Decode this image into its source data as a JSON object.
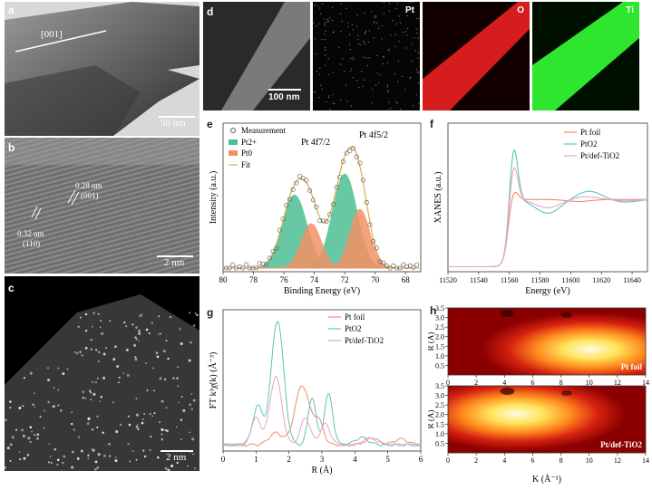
{
  "panels": {
    "a": {
      "label": "a",
      "direction": "[001]",
      "scale": "50 nm"
    },
    "b": {
      "label": "b",
      "spacing1": "0.28 nm",
      "plane1": "(001)",
      "spacing2": "0.32 nm",
      "plane2": "(110)",
      "scale": "2 nm"
    },
    "c": {
      "label": "c",
      "scale": "2 nm"
    },
    "d": {
      "label": "d",
      "scale": "100 nm",
      "maps": [
        "Pt",
        "O",
        "Ti"
      ]
    },
    "e": {
      "label": "e"
    },
    "f": {
      "label": "f"
    },
    "g": {
      "label": "g"
    },
    "h": {
      "label": "h"
    }
  },
  "chart_data": [
    {
      "id": "e",
      "type": "line",
      "xlabel": "Binding Energy (eV)",
      "ylabel": "Intensity (a.u.)",
      "xlim": [
        80,
        67
      ],
      "xticks": [
        80,
        78,
        76,
        74,
        72,
        70,
        68
      ],
      "legend": [
        "Measurement",
        "Pt2+",
        "Pt0",
        "Fit"
      ],
      "annotations": [
        "Pt 4f7/2",
        "Pt 4f5/2"
      ],
      "peaks": [
        {
          "name": "Pt2+",
          "center": 75.3,
          "height": 0.56,
          "width": 0.8
        },
        {
          "name": "Pt2+",
          "center": 72.0,
          "height": 0.72,
          "width": 0.8
        },
        {
          "name": "Pt0",
          "center": 74.2,
          "height": 0.34,
          "width": 0.65
        },
        {
          "name": "Pt0",
          "center": 71.0,
          "height": 0.45,
          "width": 0.65
        }
      ],
      "colors": {
        "Pt2+": "#4dbf94",
        "Pt0": "#f49164",
        "Fit": "#d9b04c",
        "Measurement": "#555555"
      }
    },
    {
      "id": "f",
      "type": "line",
      "xlabel": "Energy (eV)",
      "ylabel": "XANES (a.u.)",
      "xlim": [
        11520,
        11650
      ],
      "xticks": [
        11520,
        11540,
        11560,
        11580,
        11600,
        11620,
        11640
      ],
      "legend": [
        "Pt foil",
        "PtO2",
        "Pt/def-TiO2"
      ],
      "series": [
        {
          "name": "Pt foil",
          "color": "#f08a6c",
          "edge": 11563,
          "peak": 1.15,
          "post": [
            [
              11590,
              1.0
            ],
            [
              11605,
              0.97
            ],
            [
              11620,
              1.0
            ]
          ]
        },
        {
          "name": "PtO2",
          "color": "#5cc7b0",
          "edge": 11563,
          "peak": 1.78,
          "post": [
            [
              11585,
              0.8
            ],
            [
              11612,
              1.12
            ],
            [
              11635,
              0.96
            ]
          ]
        },
        {
          "name": "Pt/def-TiO2",
          "color": "#e3a4cf",
          "edge": 11563,
          "peak": 1.52,
          "post": [
            [
              11585,
              0.88
            ],
            [
              11610,
              1.04
            ],
            [
              11635,
              0.98
            ]
          ]
        }
      ]
    },
    {
      "id": "g",
      "type": "line",
      "xlabel": "R (Å)",
      "ylabel": "FT k³χ(k) (Å⁻³)",
      "xlim": [
        0,
        6
      ],
      "xticks": [
        0,
        1,
        2,
        3,
        4,
        5,
        6
      ],
      "legend": [
        "Pt foil",
        "PtO2",
        "Pt/def-TiO2"
      ],
      "series": [
        {
          "name": "Pt foil",
          "color": "#f08a6c",
          "peaks": [
            [
              1.6,
              0.2,
              0.2
            ],
            [
              2.4,
              1.0,
              0.22
            ],
            [
              2.9,
              0.38,
              0.15
            ],
            [
              4.5,
              0.12,
              0.2
            ],
            [
              5.4,
              0.1,
              0.2
            ]
          ]
        },
        {
          "name": "PtO2",
          "color": "#5cc7b0",
          "peaks": [
            [
              1.05,
              0.65,
              0.15
            ],
            [
              1.65,
              2.1,
              0.19
            ],
            [
              2.7,
              0.8,
              0.12
            ],
            [
              3.2,
              0.85,
              0.13
            ],
            [
              4.2,
              0.12,
              0.2
            ]
          ]
        },
        {
          "name": "Pt/def-TiO2",
          "color": "#e3a4cf",
          "peaks": [
            [
              1.0,
              0.45,
              0.15
            ],
            [
              1.6,
              1.15,
              0.18
            ],
            [
              2.5,
              0.45,
              0.15
            ],
            [
              3.1,
              0.35,
              0.15
            ],
            [
              4.5,
              0.1,
              0.2
            ]
          ]
        }
      ]
    },
    {
      "id": "h",
      "type": "heatmap",
      "xlabel": "K (Å⁻¹)",
      "ylabel": "R (Å)",
      "xlim": [
        0,
        14
      ],
      "xticks": [
        0,
        2,
        4,
        6,
        8,
        10,
        12,
        14
      ],
      "ylim": [
        0,
        3.5
      ],
      "yticks": [
        0.5,
        1.0,
        1.5,
        2.0,
        2.5,
        3.0,
        3.5
      ],
      "maps": [
        "Pt foil",
        "Pt/def-TiO2"
      ]
    }
  ]
}
